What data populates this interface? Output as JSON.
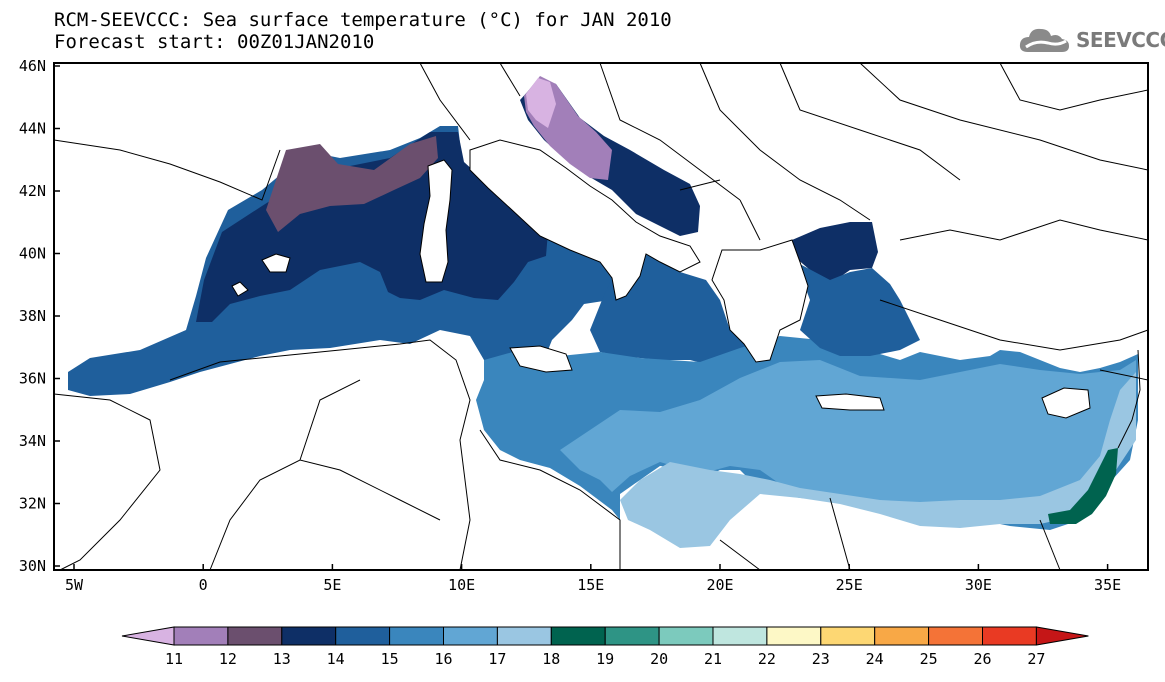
{
  "title": {
    "line1": "RCM-SEEVCCC: Sea surface temperature (°C) for JAN 2010",
    "line2": "Forecast start: 00Z01JAN2010"
  },
  "logo": {
    "text": "SEEVCCC",
    "icon": "cloud-logo-icon"
  },
  "map": {
    "lat_labels": [
      "46N",
      "44N",
      "42N",
      "40N",
      "38N",
      "36N",
      "34N",
      "32N",
      "30N"
    ],
    "lon_labels": [
      "5W",
      "0",
      "5E",
      "10E",
      "15E",
      "20E",
      "25E",
      "30E",
      "35E"
    ]
  },
  "colorbar": {
    "labels": [
      "11",
      "12",
      "13",
      "14",
      "15",
      "16",
      "17",
      "18",
      "19",
      "20",
      "21",
      "22",
      "23",
      "24",
      "25",
      "26",
      "27"
    ],
    "colors": [
      "#d8b3e2",
      "#a27fb9",
      "#6b4f6e",
      "#0e2f66",
      "#1f5f9c",
      "#3a86bd",
      "#61a6d4",
      "#9ac6e2",
      "#00634f",
      "#2e9485",
      "#7ccabd",
      "#bfe6df",
      "#fdf8c6",
      "#fdd773",
      "#f8a846",
      "#f47337",
      "#e93a23",
      "#c51617"
    ]
  }
}
